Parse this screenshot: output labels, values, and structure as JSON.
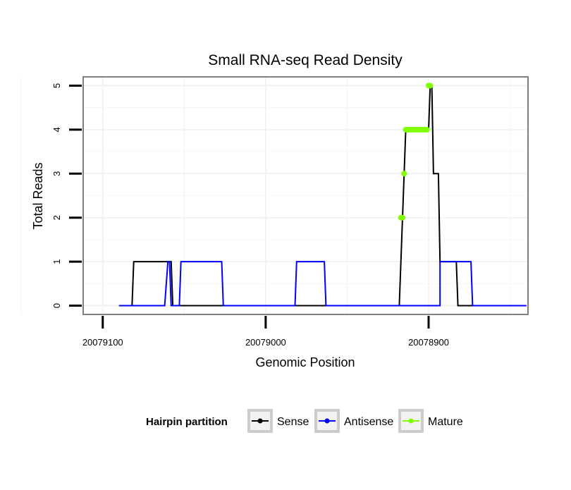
{
  "chart_data": {
    "type": "line",
    "title": "Small RNA-seq Read Density",
    "xlabel": "Genomic Position",
    "ylabel": "Total Reads",
    "x_reversed": true,
    "xlim": [
      20079112,
      20078839
    ],
    "ylim": [
      -0.2,
      5.2
    ],
    "x_ticks": [
      20079100,
      20079000,
      20078900
    ],
    "x_tick_labels": [
      "20079100",
      "20079000",
      "20078900"
    ],
    "y_ticks": [
      0,
      1,
      2,
      3,
      4,
      5
    ],
    "y_tick_labels": [
      "0",
      "1",
      "2",
      "3",
      "4",
      "5"
    ],
    "grid": true,
    "legend": {
      "title": "Hairpin partition",
      "position": "bottom",
      "entries": [
        "Sense",
        "Antisense",
        "Mature"
      ]
    },
    "series": [
      {
        "name": "Sense",
        "color": "#000000",
        "kind": "line",
        "points": [
          [
            20079090,
            0
          ],
          [
            20079082,
            0
          ],
          [
            20079081,
            1
          ],
          [
            20079058,
            1
          ],
          [
            20079057,
            0
          ],
          [
            20079000,
            0
          ],
          [
            20078918,
            0
          ],
          [
            20078916,
            2
          ],
          [
            20078915,
            3
          ],
          [
            20078914,
            4
          ],
          [
            20078900,
            4
          ],
          [
            20078899,
            5
          ],
          [
            20078898,
            5
          ],
          [
            20078897,
            3
          ],
          [
            20078894,
            3
          ],
          [
            20078893,
            1
          ],
          [
            20078883,
            1
          ],
          [
            20078882,
            0
          ],
          [
            20078840,
            0
          ]
        ]
      },
      {
        "name": "Antisense",
        "color": "#0000ff",
        "kind": "line",
        "points": [
          [
            20079090,
            0
          ],
          [
            20079062,
            0
          ],
          [
            20079060,
            1
          ],
          [
            20079059,
            1
          ],
          [
            20079058,
            0
          ],
          [
            20079053,
            0
          ],
          [
            20079052,
            1
          ],
          [
            20079027,
            1
          ],
          [
            20079026,
            0
          ],
          [
            20078982,
            0
          ],
          [
            20078981,
            1
          ],
          [
            20078964,
            1
          ],
          [
            20078963,
            0
          ],
          [
            20078893,
            0
          ],
          [
            20078893,
            1
          ],
          [
            20078874,
            1
          ],
          [
            20078873,
            0
          ],
          [
            20078840,
            0
          ]
        ]
      },
      {
        "name": "Mature",
        "color": "#7fff00",
        "kind": "points",
        "points": [
          [
            20078917,
            2
          ],
          [
            20078916,
            2
          ],
          [
            20078915,
            3
          ],
          [
            20078914,
            4
          ],
          [
            20078913,
            4
          ],
          [
            20078912,
            4
          ],
          [
            20078911,
            4
          ],
          [
            20078910,
            4
          ],
          [
            20078909,
            4
          ],
          [
            20078908,
            4
          ],
          [
            20078907,
            4
          ],
          [
            20078906,
            4
          ],
          [
            20078905,
            4
          ],
          [
            20078904,
            4
          ],
          [
            20078903,
            4
          ],
          [
            20078902,
            4
          ],
          [
            20078901,
            4
          ],
          [
            20078900,
            5
          ],
          [
            20078899,
            5
          ]
        ]
      }
    ]
  }
}
